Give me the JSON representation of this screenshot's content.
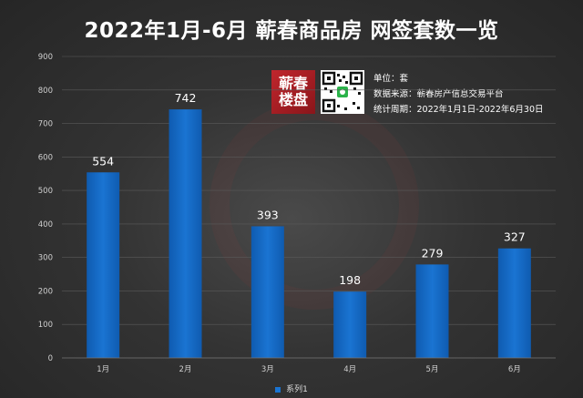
{
  "title": "2022年1月-6月 蕲春商品房 网签套数一览",
  "logo": {
    "line1": "蕲春",
    "line2": "楼盘"
  },
  "info": {
    "unit": "单位：套",
    "source": "数据来源：蕲春房产信息交易平台",
    "period": "统计周期：2022年1月1日-2022年6月30日"
  },
  "colors": {
    "bar": "#1a74d2",
    "bar_dark": "#0f5bb0",
    "grid": "#5a5a5a",
    "axis_text": "#d0d0d0",
    "label_text": "#ffffff"
  },
  "chart_data": {
    "type": "bar",
    "categories": [
      "1月",
      "2月",
      "3月",
      "4月",
      "5月",
      "6月"
    ],
    "series": [
      {
        "name": "系列1",
        "values": [
          554,
          742,
          393,
          198,
          279,
          327
        ]
      }
    ],
    "ylim": [
      0,
      900
    ],
    "yticks": [
      0,
      100,
      200,
      300,
      400,
      500,
      600,
      700,
      800,
      900
    ],
    "grid": true,
    "legend": "bottom"
  }
}
